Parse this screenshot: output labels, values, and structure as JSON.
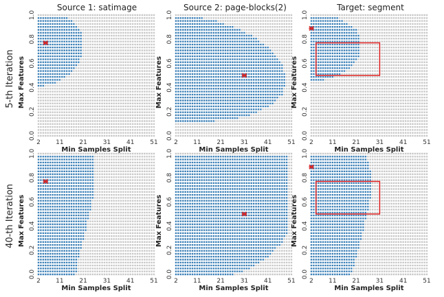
{
  "chart_data": {
    "type": "heatmap",
    "column_titles": [
      "Source 1: satimage",
      "Source 2: page-blocks(2)",
      "Target: segment"
    ],
    "row_labels": [
      "5-th Iteration",
      "40-th Iteration"
    ],
    "xlabel": "Min Samples Split",
    "ylabel": "Max Features",
    "x_range": [
      2,
      51
    ],
    "y_range": [
      0.0,
      1.0
    ],
    "x_ticks": [
      "2",
      "11",
      "21",
      "31",
      "41",
      "51"
    ],
    "y_ticks": [
      "0.0",
      "0.2",
      "0.4",
      "0.6",
      "0.8",
      "1.0"
    ],
    "grid_columns": 50,
    "grid_rows": 42,
    "colors": {
      "active": "#3a7fb6",
      "inactive": "#c8c8c8",
      "marker": "#d62728",
      "box": "#e02020"
    },
    "panels": [
      {
        "row": 0,
        "col": 0,
        "region": "half-disk centered near x=2, y=0.78, extending to about x=21 and down to y=0.40",
        "region_x_points": [
          2,
          11,
          16,
          19,
          21,
          21,
          20,
          17,
          12,
          2
        ],
        "region_y_points": [
          0.4,
          0.45,
          0.52,
          0.6,
          0.68,
          0.78,
          0.87,
          0.94,
          1.0,
          1.0
        ],
        "marker": {
          "x": 5,
          "y": 0.77
        }
      },
      {
        "row": 0,
        "col": 1,
        "region": "bow shape with tip near x=49, y=0.45",
        "region_x_points": [
          2,
          2,
          9,
          18,
          27,
          35,
          42,
          47,
          49,
          47,
          42,
          35,
          27,
          18,
          9,
          2
        ],
        "region_y_points": [
          0.1,
          1.0,
          0.99,
          0.96,
          0.9,
          0.82,
          0.72,
          0.6,
          0.45,
          0.34,
          0.25,
          0.18,
          0.14,
          0.12,
          0.11,
          0.1
        ],
        "marker": {
          "x": 31,
          "y": 0.5
        }
      },
      {
        "row": 0,
        "col": 2,
        "region": "half-disk centered near x=2, y=0.73, extending to about x=23",
        "region_x_points": [
          2,
          11,
          18,
          21,
          23,
          23,
          21,
          16,
          11,
          2
        ],
        "region_y_points": [
          0.44,
          0.48,
          0.55,
          0.62,
          0.68,
          0.8,
          0.88,
          0.95,
          1.0,
          1.0
        ],
        "marker": {
          "x": 2,
          "y": 0.89
        },
        "box": {
          "x": [
            4,
            31
          ],
          "y": [
            0.5,
            0.77
          ]
        }
      },
      {
        "row": 1,
        "col": 0,
        "region": "filled area from x=2 to about x=25, full height, narrowing at the bottom",
        "region_x_points": [
          2,
          2,
          25,
          26,
          25,
          23,
          21,
          19,
          18
        ],
        "region_y_points": [
          0.0,
          1.0,
          1.0,
          0.8,
          0.62,
          0.44,
          0.28,
          0.14,
          0.0
        ],
        "marker": {
          "x": 5,
          "y": 0.77
        }
      },
      {
        "row": 1,
        "col": 1,
        "region": "filled area covering almost the whole grid except the lower-right corner",
        "region_x_points": [
          2,
          2,
          50,
          50,
          47,
          42,
          35,
          27
        ],
        "region_y_points": [
          0.0,
          1.0,
          1.0,
          0.37,
          0.26,
          0.16,
          0.06,
          0.0
        ],
        "marker": {
          "x": 31,
          "y": 0.5
        }
      },
      {
        "row": 1,
        "col": 2,
        "region": "filled area from x=2 to about x=28, full height, narrowing at the bottom",
        "region_x_points": [
          2,
          2,
          25,
          28,
          27,
          25,
          23,
          21,
          19
        ],
        "region_y_points": [
          0.0,
          1.0,
          1.0,
          0.8,
          0.62,
          0.44,
          0.28,
          0.14,
          0.0
        ],
        "marker": {
          "x": 2,
          "y": 0.89
        },
        "box": {
          "x": [
            4,
            31
          ],
          "y": [
            0.5,
            0.77
          ]
        }
      }
    ]
  }
}
